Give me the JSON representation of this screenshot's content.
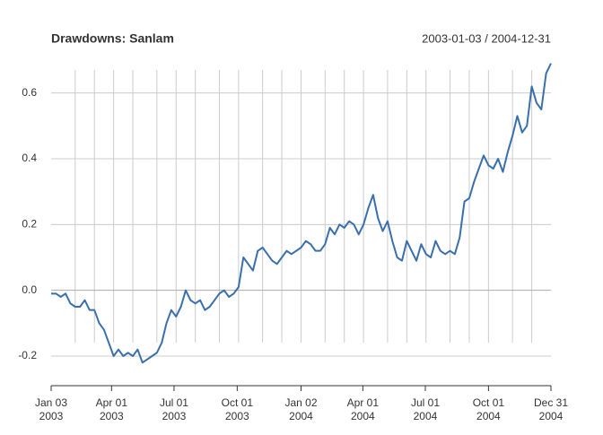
{
  "chart_data": {
    "type": "line",
    "title": "Drawdowns: Sanlam",
    "subtitle": "2003-01-03 / 2004-12-31",
    "x": [
      "2003-01-03",
      "2003-01-10",
      "2003-01-17",
      "2003-01-24",
      "2003-01-31",
      "2003-02-07",
      "2003-02-14",
      "2003-02-21",
      "2003-02-28",
      "2003-03-07",
      "2003-03-14",
      "2003-03-21",
      "2003-03-28",
      "2003-04-04",
      "2003-04-11",
      "2003-04-18",
      "2003-04-25",
      "2003-05-02",
      "2003-05-09",
      "2003-05-16",
      "2003-05-23",
      "2003-05-30",
      "2003-06-06",
      "2003-06-13",
      "2003-06-20",
      "2003-06-27",
      "2003-07-04",
      "2003-07-11",
      "2003-07-18",
      "2003-07-25",
      "2003-08-01",
      "2003-08-08",
      "2003-08-15",
      "2003-08-22",
      "2003-08-29",
      "2003-09-05",
      "2003-09-12",
      "2003-09-19",
      "2003-09-26",
      "2003-10-03",
      "2003-10-10",
      "2003-10-17",
      "2003-10-24",
      "2003-10-31",
      "2003-11-07",
      "2003-11-14",
      "2003-11-21",
      "2003-11-28",
      "2003-12-05",
      "2003-12-12",
      "2003-12-19",
      "2003-12-26",
      "2004-01-02",
      "2004-01-09",
      "2004-01-16",
      "2004-01-23",
      "2004-01-30",
      "2004-02-06",
      "2004-02-13",
      "2004-02-20",
      "2004-02-27",
      "2004-03-05",
      "2004-03-12",
      "2004-03-19",
      "2004-03-26",
      "2004-04-02",
      "2004-04-09",
      "2004-04-16",
      "2004-04-23",
      "2004-04-30",
      "2004-05-07",
      "2004-05-14",
      "2004-05-21",
      "2004-05-28",
      "2004-06-04",
      "2004-06-11",
      "2004-06-18",
      "2004-06-25",
      "2004-07-02",
      "2004-07-09",
      "2004-07-16",
      "2004-07-23",
      "2004-07-30",
      "2004-08-06",
      "2004-08-13",
      "2004-08-20",
      "2004-08-27",
      "2004-09-03",
      "2004-09-10",
      "2004-09-17",
      "2004-09-24",
      "2004-10-01",
      "2004-10-08",
      "2004-10-15",
      "2004-10-22",
      "2004-10-29",
      "2004-11-05",
      "2004-11-12",
      "2004-11-19",
      "2004-11-26",
      "2004-12-03",
      "2004-12-10",
      "2004-12-17",
      "2004-12-24",
      "2004-12-31"
    ],
    "series": [
      {
        "color": "#3a6fad",
        "values": [
          -0.01,
          -0.01,
          -0.02,
          -0.01,
          -0.04,
          -0.05,
          -0.05,
          -0.03,
          -0.06,
          -0.06,
          -0.1,
          -0.12,
          -0.16,
          -0.2,
          -0.18,
          -0.2,
          -0.19,
          -0.2,
          -0.18,
          -0.22,
          -0.21,
          -0.2,
          -0.19,
          -0.16,
          -0.1,
          -0.06,
          -0.08,
          -0.05,
          0.0,
          -0.03,
          -0.04,
          -0.03,
          -0.06,
          -0.05,
          -0.03,
          -0.01,
          0.0,
          -0.02,
          -0.01,
          0.01,
          0.1,
          0.08,
          0.06,
          0.12,
          0.13,
          0.11,
          0.09,
          0.08,
          0.1,
          0.12,
          0.11,
          0.12,
          0.13,
          0.15,
          0.14,
          0.12,
          0.12,
          0.14,
          0.19,
          0.17,
          0.2,
          0.19,
          0.21,
          0.2,
          0.17,
          0.2,
          0.25,
          0.29,
          0.22,
          0.18,
          0.21,
          0.15,
          0.1,
          0.09,
          0.15,
          0.12,
          0.09,
          0.14,
          0.11,
          0.1,
          0.15,
          0.12,
          0.11,
          0.12,
          0.11,
          0.16,
          0.27,
          0.28,
          0.33,
          0.37,
          0.41,
          0.38,
          0.37,
          0.4,
          0.36,
          0.42,
          0.47,
          0.53,
          0.48,
          0.5,
          0.62,
          0.57,
          0.55,
          0.66,
          0.69
        ]
      }
    ],
    "xlim": [
      "2003-01-03",
      "2004-12-31"
    ],
    "xticks": [
      {
        "value": "2003-01-03",
        "label": [
          "Jan 03",
          "2003"
        ]
      },
      {
        "value": "2003-04-01",
        "label": [
          "Apr 01",
          "2003"
        ]
      },
      {
        "value": "2003-07-01",
        "label": [
          "Jul 01",
          "2003"
        ]
      },
      {
        "value": "2003-10-01",
        "label": [
          "Oct 01",
          "2003"
        ]
      },
      {
        "value": "2004-01-02",
        "label": [
          "Jan 02",
          "2004"
        ]
      },
      {
        "value": "2004-04-01",
        "label": [
          "Apr 01",
          "2004"
        ]
      },
      {
        "value": "2004-07-01",
        "label": [
          "Jul 01",
          "2004"
        ]
      },
      {
        "value": "2004-10-01",
        "label": [
          "Oct 01",
          "2004"
        ]
      },
      {
        "value": "2004-12-31",
        "label": [
          "Dec 31",
          "2004"
        ]
      }
    ],
    "ylim": [
      -0.29,
      0.67
    ],
    "yticks": [
      -0.2,
      {
        "value": 0,
        "label": "0.0"
      },
      0.2,
      0.4,
      0.6
    ],
    "grid": true
  }
}
